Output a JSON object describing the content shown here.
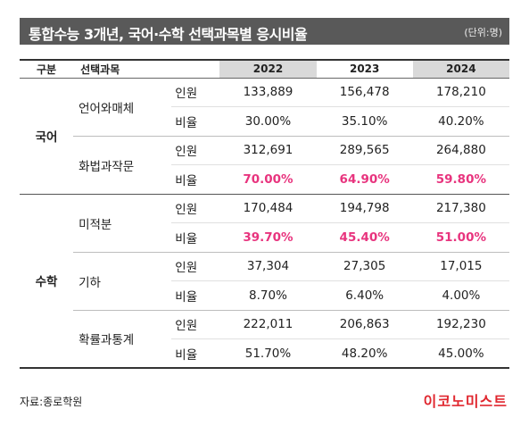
{
  "title": "통합수능 3개년, 국어·수학 선택과목별 응시비율",
  "unit": "(단위:명)",
  "header": {
    "group": "구분",
    "subject": "선택과목",
    "years": [
      "2022",
      "2023",
      "2024"
    ]
  },
  "groups": [
    {
      "name": "국어",
      "subjects": [
        {
          "name": "언어와매체",
          "count_label": "인원",
          "ratio_label": "비율",
          "counts": [
            "133,889",
            "156,478",
            "178,210"
          ],
          "ratios": [
            "30.00%",
            "35.10%",
            "40.20%"
          ],
          "ratio_highlight": false
        },
        {
          "name": "화법과작문",
          "count_label": "인원",
          "ratio_label": "비율",
          "counts": [
            "312,691",
            "289,565",
            "264,880"
          ],
          "ratios": [
            "70.00%",
            "64.90%",
            "59.80%"
          ],
          "ratio_highlight": true
        }
      ]
    },
    {
      "name": "수학",
      "subjects": [
        {
          "name": "미적분",
          "count_label": "인원",
          "ratio_label": "비율",
          "counts": [
            "170,484",
            "194,798",
            "217,380"
          ],
          "ratios": [
            "39.70%",
            "45.40%",
            "51.00%"
          ],
          "ratio_highlight": true
        },
        {
          "name": "기하",
          "count_label": "인원",
          "ratio_label": "비율",
          "counts": [
            "37,304",
            "27,305",
            "17,015"
          ],
          "ratios": [
            "8.70%",
            "6.40%",
            "4.00%"
          ],
          "ratio_highlight": false
        },
        {
          "name": "확률과통계",
          "count_label": "인원",
          "ratio_label": "비율",
          "counts": [
            "222,011",
            "206,863",
            "192,230"
          ],
          "ratios": [
            "51.70%",
            "48.20%",
            "45.00%"
          ],
          "ratio_highlight": false
        }
      ]
    }
  ],
  "source": "자료:종로학원",
  "logo": "이코노미스트",
  "colors": {
    "title_bg": "#595959",
    "header_shade": "#d9d9d9",
    "highlight": "#e8347e",
    "logo": "#e0272f"
  }
}
